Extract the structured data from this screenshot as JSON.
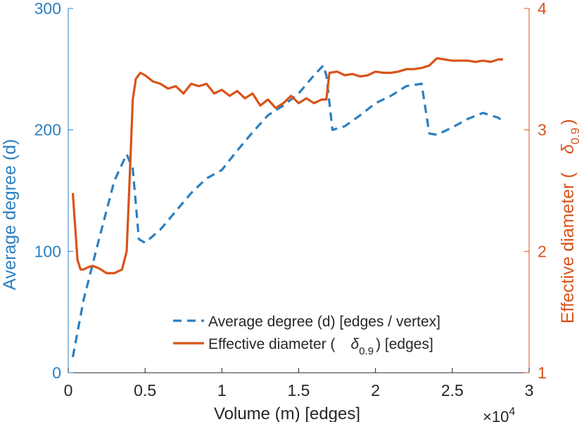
{
  "chart_data": {
    "type": "line",
    "xlabel": "Volume (m) [edges]",
    "x_exponent": "×10",
    "x_exponent_power": "4",
    "xlim": [
      0,
      3
    ],
    "x_ticks": [
      0,
      0.5,
      1,
      1.5,
      2,
      2.5,
      3
    ],
    "x_tick_labels": [
      "0",
      "0.5",
      "1",
      "1.5",
      "2",
      "2.5",
      "3"
    ],
    "y_left": {
      "label": "Average degree (d)",
      "lim": [
        0,
        300
      ],
      "ticks": [
        0,
        100,
        200,
        300
      ],
      "tick_labels": [
        "0",
        "100",
        "200",
        "300"
      ],
      "color": "#2b7fc0"
    },
    "y_right": {
      "label": "Effective diameter (",
      "label_symbol": "δ",
      "label_subscript": "0.9",
      "label_close": ")",
      "lim": [
        1,
        4
      ],
      "ticks": [
        1,
        2,
        3,
        4
      ],
      "tick_labels": [
        "1",
        "2",
        "3",
        "4"
      ],
      "color": "#d95319"
    },
    "legend": {
      "position": "bottom-right",
      "items": [
        {
          "text": "Average degree (d) [edges / vertex]",
          "style": "dashed",
          "color": "#2b7fc0"
        },
        {
          "text_before": "Effective diameter (",
          "symbol": "δ",
          "subscript": "0.9",
          "text_after": ") [edges]",
          "style": "solid",
          "color": "#d95319"
        }
      ]
    },
    "series": [
      {
        "name": "Average degree (d) [edges / vertex]",
        "axis": "left",
        "style": "dashed",
        "color": "#2b7fc0",
        "x": [
          0.03,
          0.1,
          0.2,
          0.3,
          0.38,
          0.42,
          0.46,
          0.5,
          0.6,
          0.7,
          0.8,
          0.9,
          1.0,
          1.1,
          1.2,
          1.3,
          1.4,
          1.5,
          1.6,
          1.66,
          1.68,
          1.72,
          1.8,
          1.9,
          2.0,
          2.1,
          2.2,
          2.3,
          2.35,
          2.4,
          2.5,
          2.6,
          2.7,
          2.8,
          2.83
        ],
        "values": [
          13,
          60,
          110,
          158,
          180,
          168,
          110,
          107,
          118,
          133,
          148,
          160,
          167,
          183,
          198,
          212,
          220,
          230,
          245,
          253,
          245,
          200,
          203,
          212,
          222,
          228,
          236,
          238,
          197,
          196,
          202,
          209,
          214,
          210,
          207
        ]
      },
      {
        "name": "Effective diameter (δ 0.9) [edges]",
        "axis": "right",
        "style": "solid",
        "color": "#d95319",
        "x": [
          0.03,
          0.06,
          0.08,
          0.1,
          0.13,
          0.16,
          0.2,
          0.25,
          0.3,
          0.35,
          0.38,
          0.4,
          0.42,
          0.44,
          0.47,
          0.5,
          0.55,
          0.6,
          0.65,
          0.7,
          0.75,
          0.8,
          0.85,
          0.9,
          0.95,
          1.0,
          1.05,
          1.1,
          1.15,
          1.2,
          1.25,
          1.3,
          1.35,
          1.4,
          1.45,
          1.5,
          1.55,
          1.6,
          1.65,
          1.68,
          1.7,
          1.75,
          1.8,
          1.85,
          1.9,
          1.95,
          2.0,
          2.05,
          2.1,
          2.15,
          2.2,
          2.25,
          2.3,
          2.35,
          2.4,
          2.45,
          2.5,
          2.55,
          2.6,
          2.65,
          2.7,
          2.75,
          2.8,
          2.83
        ],
        "values": [
          2.48,
          1.93,
          1.85,
          1.85,
          1.87,
          1.88,
          1.86,
          1.82,
          1.82,
          1.85,
          2.0,
          2.6,
          3.25,
          3.42,
          3.47,
          3.45,
          3.4,
          3.38,
          3.34,
          3.36,
          3.3,
          3.38,
          3.36,
          3.38,
          3.3,
          3.33,
          3.28,
          3.32,
          3.26,
          3.3,
          3.2,
          3.25,
          3.18,
          3.22,
          3.28,
          3.22,
          3.26,
          3.22,
          3.25,
          3.25,
          3.47,
          3.48,
          3.45,
          3.46,
          3.44,
          3.45,
          3.48,
          3.47,
          3.47,
          3.48,
          3.5,
          3.5,
          3.51,
          3.53,
          3.59,
          3.58,
          3.57,
          3.57,
          3.57,
          3.56,
          3.57,
          3.56,
          3.58,
          3.58
        ]
      }
    ]
  }
}
